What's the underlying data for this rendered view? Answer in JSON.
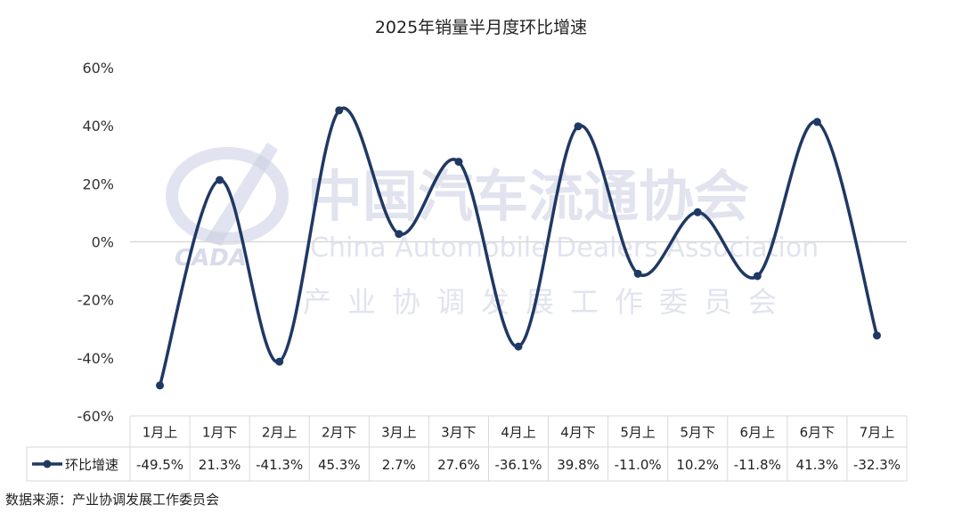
{
  "chart_data": {
    "type": "line",
    "title": "2025年销量半月度环比增速",
    "categories": [
      "1月上",
      "1月下",
      "2月上",
      "2月下",
      "3月上",
      "3月下",
      "4月上",
      "4月下",
      "5月上",
      "5月下",
      "6月上",
      "6月下",
      "7月上"
    ],
    "series": [
      {
        "name": "环比增速",
        "values": [
          -49.5,
          21.3,
          -41.3,
          45.3,
          2.7,
          27.6,
          -36.1,
          39.8,
          -11.0,
          10.2,
          -11.8,
          41.3,
          -32.3
        ],
        "labels": [
          "-49.5%",
          "21.3%",
          "-41.3%",
          "45.3%",
          "2.7%",
          "27.6%",
          "-36.1%",
          "39.8%",
          "-11.0%",
          "10.2%",
          "-11.8%",
          "41.3%",
          "-32.3%"
        ],
        "color": "#1f3864"
      }
    ],
    "ylim": [
      -60,
      60
    ],
    "yticks": [
      60,
      40,
      20,
      0,
      -20,
      -40,
      -60
    ],
    "ytick_labels": [
      "60%",
      "40%",
      "20%",
      "0%",
      "-20%",
      "-40%",
      "-60%"
    ],
    "xlabel": "",
    "ylabel": "",
    "grid": false,
    "legend": "data-table"
  },
  "watermark": {
    "logo_text": "CADA",
    "org_cn": "中国汽车流通协会",
    "org_en": "China Automobile Dealers Association",
    "dept_cn": "产业协调发展工作委员会"
  },
  "source_note": "数据来源：产业协调发展工作委员会"
}
